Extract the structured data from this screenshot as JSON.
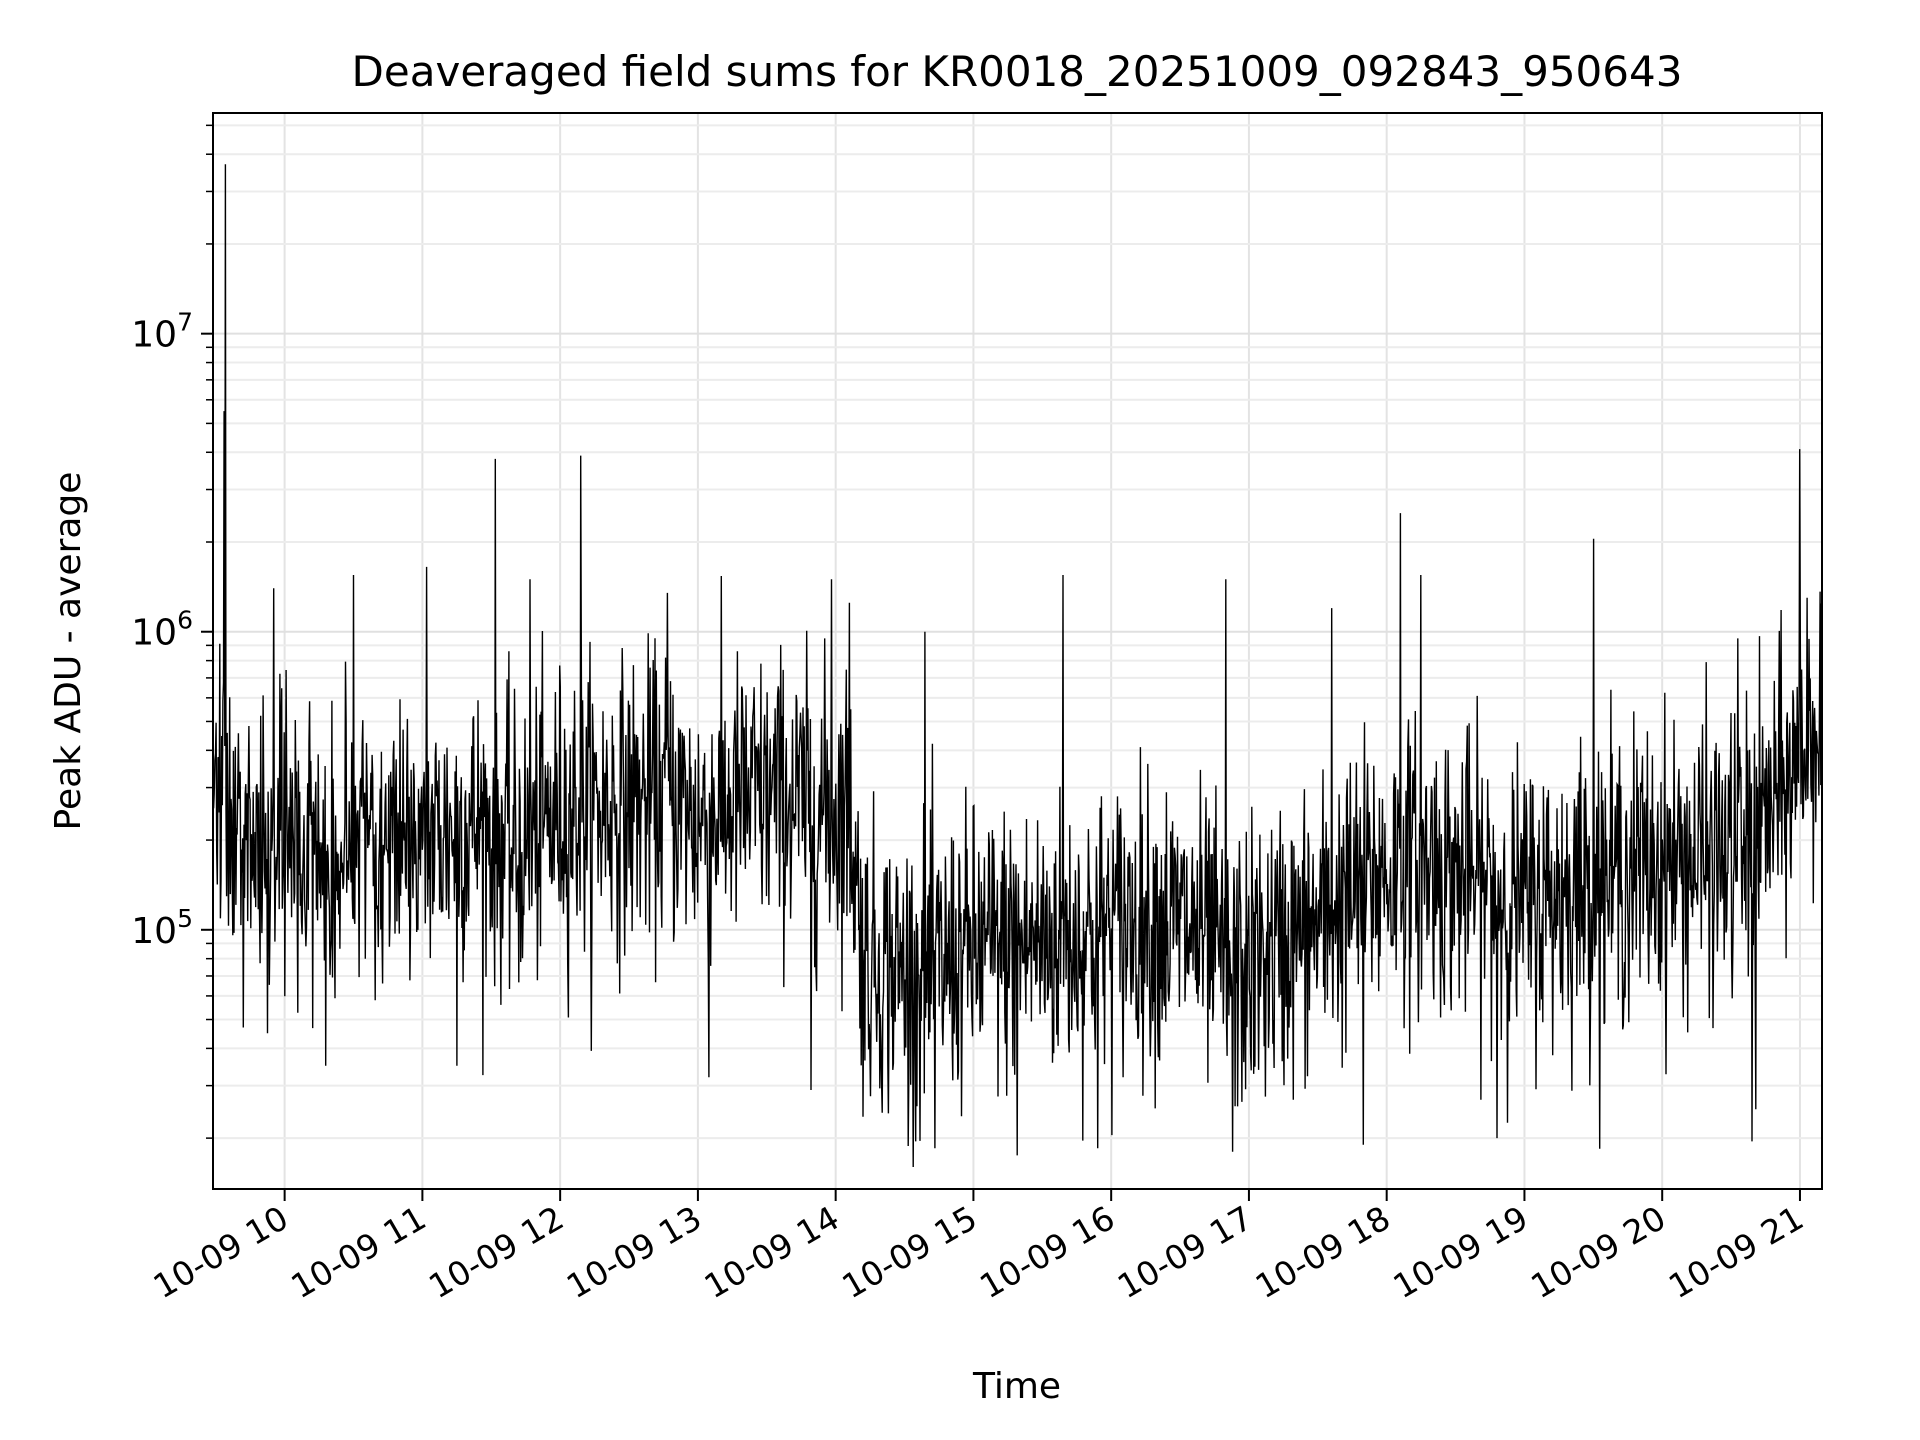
{
  "chart_data": {
    "type": "line",
    "title": "Deaveraged field sums for KR0018_20251009_092843_950643",
    "xlabel": "Time",
    "ylabel": "Peak ADU - average",
    "yscale": "log",
    "ylim": [
      13500,
      55000000
    ],
    "xlim_hours": [
      9.48,
      21.16
    ],
    "grid": true,
    "x_ticks": [
      {
        "hour": 10,
        "label": "10-09 10"
      },
      {
        "hour": 11,
        "label": "10-09 11"
      },
      {
        "hour": 12,
        "label": "10-09 12"
      },
      {
        "hour": 13,
        "label": "10-09 13"
      },
      {
        "hour": 14,
        "label": "10-09 14"
      },
      {
        "hour": 15,
        "label": "10-09 15"
      },
      {
        "hour": 16,
        "label": "10-09 16"
      },
      {
        "hour": 17,
        "label": "10-09 17"
      },
      {
        "hour": 18,
        "label": "10-09 18"
      },
      {
        "hour": 19,
        "label": "10-09 19"
      },
      {
        "hour": 20,
        "label": "10-09 20"
      },
      {
        "hour": 21,
        "label": "10-09 21"
      }
    ],
    "y_ticks": [
      {
        "value": 100000,
        "base": "10",
        "exp": "5"
      },
      {
        "value": 1000000,
        "base": "10",
        "exp": "6"
      },
      {
        "value": 10000000,
        "base": "10",
        "exp": "7"
      }
    ],
    "series": [
      {
        "name": "Deaveraged field sum",
        "color": "#000000",
        "baseline": [
          [
            9.48,
            300000
          ],
          [
            9.7,
            230000
          ],
          [
            10.0,
            220000
          ],
          [
            10.3,
            170000
          ],
          [
            10.7,
            210000
          ],
          [
            11.0,
            200000
          ],
          [
            11.4,
            230000
          ],
          [
            11.7,
            180000
          ],
          [
            12.0,
            250000
          ],
          [
            12.4,
            260000
          ],
          [
            12.8,
            280000
          ],
          [
            13.0,
            230000
          ],
          [
            13.3,
            270000
          ],
          [
            13.6,
            280000
          ],
          [
            13.9,
            250000
          ],
          [
            14.1,
            260000
          ],
          [
            14.2,
            80000
          ],
          [
            14.6,
            70000
          ],
          [
            15.0,
            85000
          ],
          [
            15.4,
            90000
          ],
          [
            15.8,
            95000
          ],
          [
            16.2,
            110000
          ],
          [
            16.6,
            100000
          ],
          [
            16.9,
            70000
          ],
          [
            17.2,
            85000
          ],
          [
            17.6,
            110000
          ],
          [
            17.9,
            150000
          ],
          [
            18.3,
            170000
          ],
          [
            18.7,
            140000
          ],
          [
            19.0,
            120000
          ],
          [
            19.4,
            140000
          ],
          [
            19.8,
            160000
          ],
          [
            20.2,
            170000
          ],
          [
            20.6,
            180000
          ],
          [
            20.9,
            300000
          ],
          [
            21.16,
            560000
          ]
        ],
        "spikes": [
          [
            9.57,
            37000000
          ],
          [
            9.56,
            5500000
          ],
          [
            9.92,
            1400000
          ],
          [
            10.5,
            1550000
          ],
          [
            11.03,
            1650000
          ],
          [
            11.53,
            3800000
          ],
          [
            11.78,
            1500000
          ],
          [
            12.15,
            3900000
          ],
          [
            12.78,
            1350000
          ],
          [
            13.97,
            1500000
          ],
          [
            14.1,
            1250000
          ],
          [
            14.65,
            1000000
          ],
          [
            15.65,
            1550000
          ],
          [
            16.83,
            1500000
          ],
          [
            17.6,
            1200000
          ],
          [
            18.1,
            2500000
          ],
          [
            18.25,
            1550000
          ],
          [
            19.5,
            2050000
          ],
          [
            20.55,
            950000
          ],
          [
            21.0,
            4100000
          ],
          [
            21.05,
            1300000
          ]
        ],
        "dips": [
          [
            9.7,
            47000
          ],
          [
            10.3,
            35000
          ],
          [
            11.25,
            35000
          ],
          [
            13.08,
            32000
          ],
          [
            13.82,
            29000
          ],
          [
            14.58,
            19500
          ],
          [
            14.72,
            18500
          ],
          [
            15.32,
            17500
          ],
          [
            15.9,
            18500
          ],
          [
            16.88,
            18000
          ],
          [
            17.83,
            19000
          ],
          [
            18.8,
            20000
          ],
          [
            20.65,
            19500
          ],
          [
            20.68,
            25000
          ]
        ]
      }
    ]
  }
}
